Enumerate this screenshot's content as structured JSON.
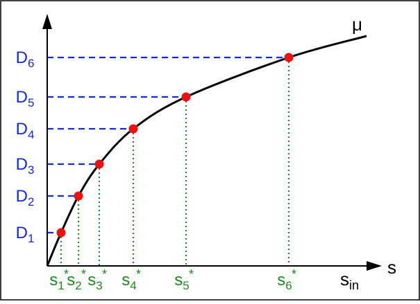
{
  "curve_label": "μ",
  "x_axis_label": "s",
  "x_axis_sublabel_main": "s",
  "x_axis_sublabel_sub": "in",
  "points": [
    {
      "d_label": "D",
      "d_sub": "1",
      "s_label": "s",
      "s_sub": "1",
      "s_sup": "*"
    },
    {
      "d_label": "D",
      "d_sub": "2",
      "s_label": "s",
      "s_sub": "2",
      "s_sup": "*"
    },
    {
      "d_label": "D",
      "d_sub": "3",
      "s_label": "s",
      "s_sub": "3",
      "s_sup": "*"
    },
    {
      "d_label": "D",
      "d_sub": "4",
      "s_label": "s",
      "s_sub": "4",
      "s_sup": "*"
    },
    {
      "d_label": "D",
      "d_sub": "5",
      "s_label": "s",
      "s_sub": "5",
      "s_sup": "*"
    },
    {
      "d_label": "D",
      "d_sub": "6",
      "s_label": "s",
      "s_sub": "6",
      "s_sup": "*"
    }
  ],
  "colors": {
    "curve": "#000000",
    "point": "#ee1111",
    "d_lines": "#1428e0",
    "s_lines": "#1e8a1e",
    "frame": "#000000"
  }
}
